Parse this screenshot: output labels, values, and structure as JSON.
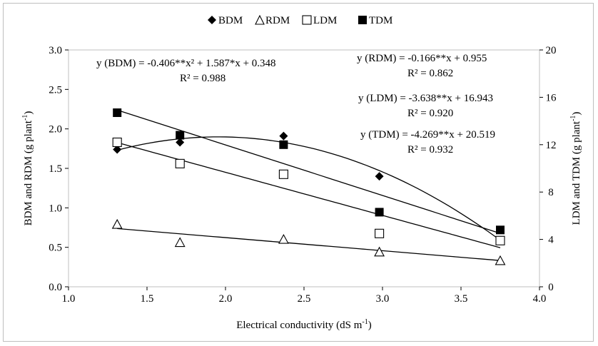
{
  "chart_data": {
    "type": "scatter",
    "xlabel": "Electrical conductivity (dS m",
    "xlabel_sup": "-1",
    "xlabel_end": ")",
    "ylabel_left": "BDM and RDM (g plant",
    "ylabel_left_sup": "-1",
    "ylabel_left_end": ")",
    "ylabel_right": "LDM and TDM (g plant",
    "ylabel_right_sup": "-1",
    "ylabel_right_end": ")",
    "xlim": [
      1.0,
      4.0
    ],
    "ylim_left": [
      0.0,
      3.0
    ],
    "ylim_right": [
      0,
      20
    ],
    "x_ticks": [
      "1.0",
      "1.5",
      "2.0",
      "2.5",
      "3.0",
      "3.5",
      "4.0"
    ],
    "y_left_ticks": [
      "0.0",
      "0.5",
      "1.0",
      "1.5",
      "2.0",
      "2.5",
      "3.0"
    ],
    "y_right_ticks": [
      "0",
      "4",
      "8",
      "12",
      "16",
      "20"
    ],
    "grid": false,
    "legend_position": "top",
    "x": [
      1.31,
      1.71,
      2.37,
      2.98,
      3.75
    ],
    "series": [
      {
        "name": "BDM",
        "axis": "left",
        "marker": "diamond",
        "values": [
          1.74,
          1.83,
          1.91,
          1.4,
          0.59
        ],
        "fit": {
          "degree": 2,
          "a": -0.406,
          "b": 1.587,
          "c": 0.348
        }
      },
      {
        "name": "RDM",
        "axis": "left",
        "marker": "triangle-open",
        "values": [
          0.79,
          0.56,
          0.6,
          0.44,
          0.33
        ],
        "fit": {
          "degree": 1,
          "b": -0.166,
          "c": 0.955
        }
      },
      {
        "name": "LDM",
        "axis": "right",
        "marker": "square-open",
        "values": [
          12.2,
          10.4,
          9.5,
          4.5,
          3.9
        ],
        "fit": {
          "degree": 1,
          "b": -3.638,
          "c": 16.943
        }
      },
      {
        "name": "TDM",
        "axis": "right",
        "marker": "square-filled",
        "values": [
          14.7,
          12.8,
          12.0,
          6.3,
          4.8
        ],
        "fit": {
          "degree": 1,
          "b": -4.269,
          "c": 20.519
        }
      }
    ],
    "annotations": {
      "bdm_eq": "y (BDM) = -0.406**x² + 1.587*x + 0.348",
      "bdm_r2": "R² = 0.988",
      "rdm_eq": "y (RDM) = -0.166**x + 0.955",
      "rdm_r2": "R² = 0.862",
      "ldm_eq": "y (LDM) = -3.638**x + 16.943",
      "ldm_r2": "R² = 0.920",
      "tdm_eq": "y (TDM) = -4.269**x + 20.519",
      "tdm_r2": "R² = 0.932"
    }
  }
}
